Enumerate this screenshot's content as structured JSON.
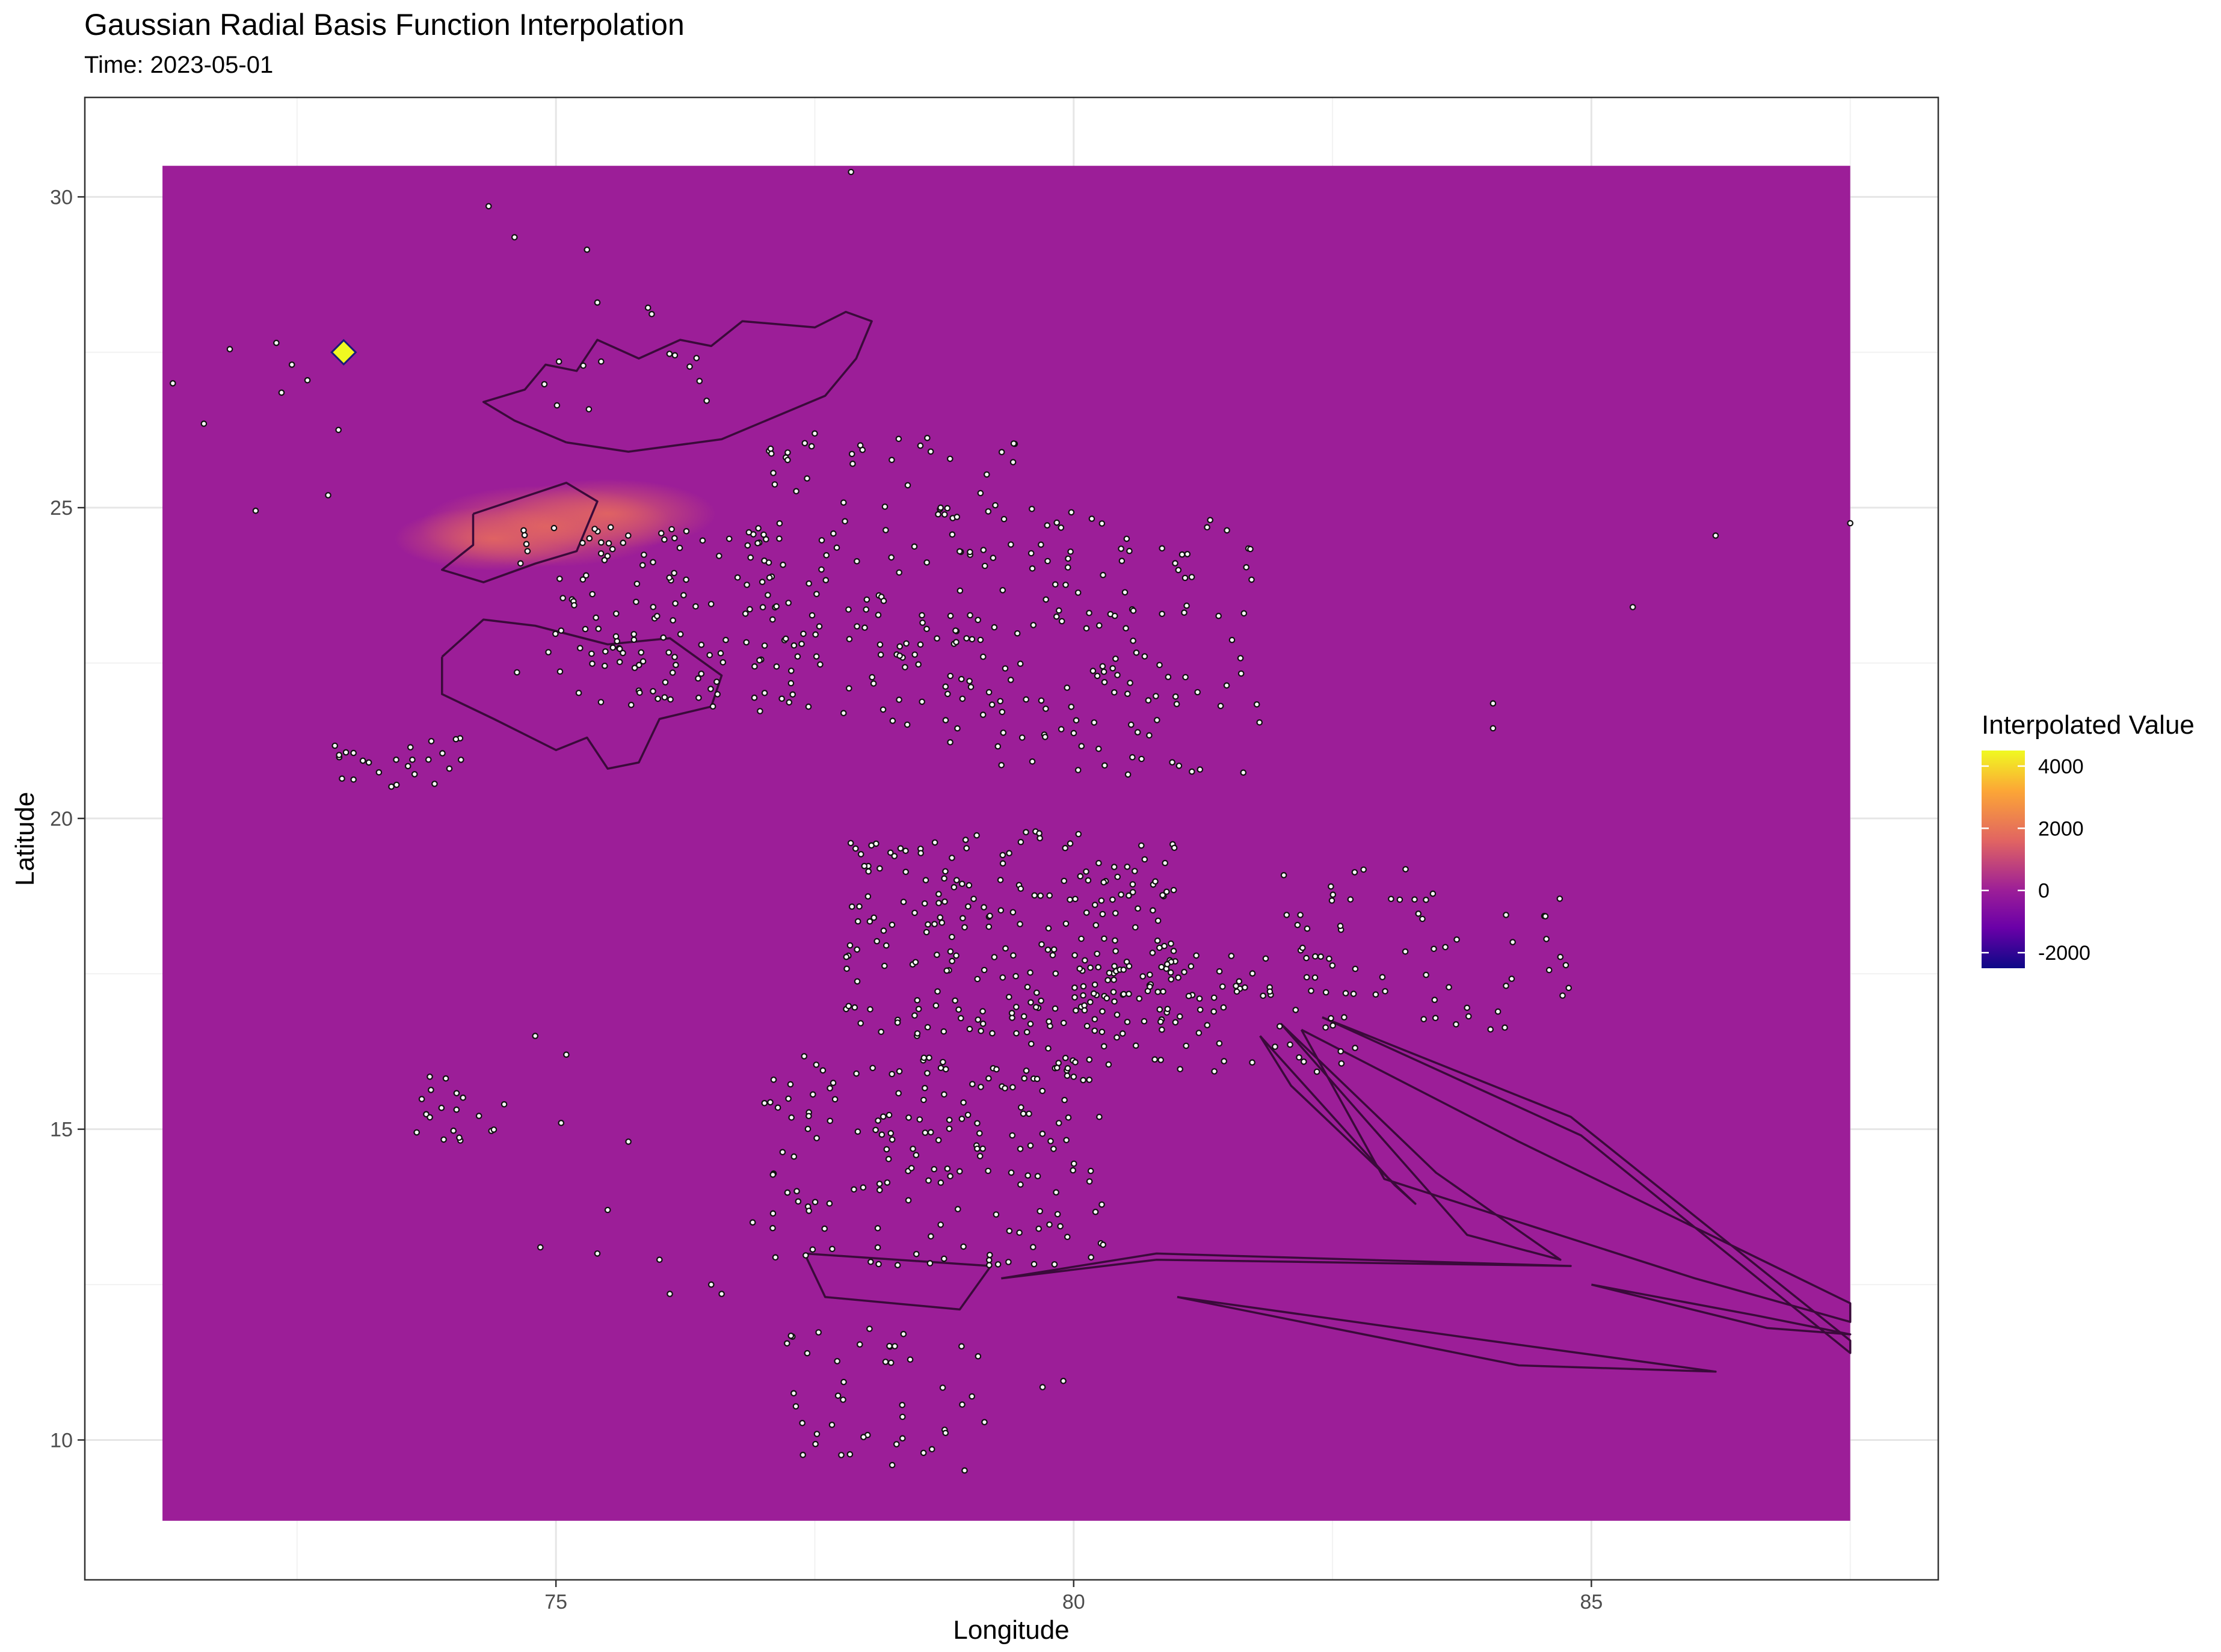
{
  "chart_data": {
    "type": "heatmap",
    "title": "Gaussian Radial Basis Function Interpolation",
    "subtitle": "Time: 2023-05-01",
    "xlabel": "Longitude",
    "ylabel": "Latitude",
    "xlim": [
      70.45,
      88.35
    ],
    "ylim": [
      7.75,
      31.6
    ],
    "x_ticks": [
      75,
      80,
      85
    ],
    "y_ticks": [
      10,
      15,
      20,
      25,
      30
    ],
    "grid": true,
    "raster_extent": {
      "lon": [
        71.2,
        87.5
      ],
      "lat": [
        8.7,
        30.5
      ]
    },
    "base_value": 0,
    "legend": {
      "title": "Interpolated Value",
      "placement": "right",
      "range": [
        -2500,
        4500
      ],
      "ticks": [
        4000,
        2000,
        0,
        -2000
      ],
      "tick_labels": [
        "4000",
        "2000",
        "0",
        "-2000"
      ]
    },
    "colors": {
      "low": "#0d0887",
      "mid_low": "#6a00a8",
      "mid": "#9c1e98",
      "mid_high": "#e16462",
      "high": "#fca636",
      "max": "#f0f921",
      "boundary": "#3a0a3a",
      "marker": "#f0f921"
    },
    "hotspots": [
      {
        "lon": 74.9,
        "lat": 24.7,
        "value": 1800
      },
      {
        "lon": 75.5,
        "lat": 24.9,
        "value": 1200
      },
      {
        "lon": 74.4,
        "lat": 24.5,
        "value": 900
      }
    ],
    "highlight_point": {
      "lon": 72.95,
      "lat": 27.5,
      "symbol": "diamond"
    },
    "station_clusters": [
      {
        "lon": [
          75.0,
          77.3
        ],
        "lat": [
          21.8,
          24.8
        ],
        "count": 90
      },
      {
        "lon": [
          76.8,
          79.5
        ],
        "lat": [
          21.5,
          26.2
        ],
        "count": 140
      },
      {
        "lon": [
          78.8,
          81.8
        ],
        "lat": [
          20.7,
          25.0
        ],
        "count": 140
      },
      {
        "lon": [
          77.8,
          81.0
        ],
        "lat": [
          16.5,
          19.8
        ],
        "count": 230
      },
      {
        "lon": [
          79.5,
          82.8
        ],
        "lat": [
          15.8,
          18.0
        ],
        "count": 110
      },
      {
        "lon": [
          82.0,
          84.8
        ],
        "lat": [
          16.6,
          19.2
        ],
        "count": 60
      },
      {
        "lon": [
          77.0,
          80.3
        ],
        "lat": [
          12.8,
          16.2
        ],
        "count": 170
      },
      {
        "lon": [
          77.2,
          79.2
        ],
        "lat": [
          9.5,
          11.8
        ],
        "count": 45
      },
      {
        "lon": [
          72.8,
          74.2
        ],
        "lat": [
          20.5,
          21.3
        ],
        "count": 25
      },
      {
        "lon": [
          73.6,
          74.5
        ],
        "lat": [
          14.8,
          15.9
        ],
        "count": 18
      },
      {
        "lon": [
          74.6,
          76.3
        ],
        "lat": [
          22.3,
          24.7
        ],
        "count": 40
      },
      {
        "lon": [
          74.8,
          76.5
        ],
        "lat": [
          26.5,
          28.3
        ],
        "count": 14
      }
    ],
    "isolated_stations": [
      [
        77.85,
        30.4
      ],
      [
        74.35,
        29.85
      ],
      [
        74.6,
        29.35
      ],
      [
        75.3,
        29.15
      ],
      [
        75.4,
        28.3
      ],
      [
        71.3,
        27.0
      ],
      [
        71.6,
        26.35
      ],
      [
        71.85,
        27.55
      ],
      [
        72.3,
        27.65
      ],
      [
        72.45,
        27.3
      ],
      [
        72.6,
        27.05
      ],
      [
        72.35,
        26.85
      ],
      [
        72.9,
        26.25
      ],
      [
        72.1,
        24.95
      ],
      [
        72.8,
        25.2
      ],
      [
        86.2,
        24.55
      ],
      [
        85.4,
        23.4
      ],
      [
        87.5,
        24.75
      ],
      [
        84.05,
        21.85
      ],
      [
        84.05,
        21.45
      ],
      [
        74.8,
        16.5
      ],
      [
        75.1,
        16.2
      ],
      [
        75.05,
        15.1
      ],
      [
        74.85,
        13.1
      ],
      [
        75.5,
        13.7
      ],
      [
        75.4,
        13.0
      ],
      [
        76.0,
        12.9
      ],
      [
        76.1,
        12.35
      ],
      [
        74.5,
        15.4
      ],
      [
        75.7,
        14.8
      ],
      [
        76.5,
        12.5
      ],
      [
        76.6,
        12.35
      ],
      [
        76.9,
        13.5
      ],
      [
        79.7,
        10.85
      ],
      [
        79.9,
        10.95
      ]
    ],
    "boundary_polygons": [
      [
        [
          75.1,
          26.05
        ],
        [
          75.7,
          25.9
        ],
        [
          76.6,
          26.1
        ],
        [
          77.6,
          26.8
        ],
        [
          77.9,
          27.4
        ],
        [
          78.05,
          28.0
        ],
        [
          77.8,
          28.15
        ],
        [
          77.5,
          27.9
        ],
        [
          76.8,
          28.0
        ],
        [
          76.5,
          27.6
        ],
        [
          76.2,
          27.7
        ],
        [
          75.8,
          27.4
        ],
        [
          75.4,
          27.7
        ],
        [
          75.2,
          27.2
        ],
        [
          74.9,
          27.3
        ],
        [
          74.7,
          26.9
        ],
        [
          74.3,
          26.7
        ],
        [
          74.6,
          26.4
        ],
        [
          75.1,
          26.05
        ]
      ],
      [
        [
          74.2,
          24.9
        ],
        [
          75.1,
          25.4
        ],
        [
          75.4,
          25.1
        ],
        [
          75.2,
          24.3
        ],
        [
          74.8,
          24.1
        ],
        [
          74.3,
          23.8
        ],
        [
          73.9,
          24.0
        ],
        [
          74.2,
          24.4
        ],
        [
          74.2,
          24.9
        ]
      ],
      [
        [
          73.9,
          22.6
        ],
        [
          74.3,
          23.2
        ],
        [
          74.8,
          23.1
        ],
        [
          75.5,
          22.8
        ],
        [
          76.1,
          22.9
        ],
        [
          76.6,
          22.3
        ],
        [
          76.5,
          21.8
        ],
        [
          76.0,
          21.6
        ],
        [
          75.8,
          20.9
        ],
        [
          75.5,
          20.8
        ],
        [
          75.3,
          21.3
        ],
        [
          75.0,
          21.1
        ],
        [
          74.4,
          21.6
        ],
        [
          73.9,
          22.0
        ],
        [
          73.9,
          22.6
        ]
      ],
      [
        [
          77.4,
          13.0
        ],
        [
          79.2,
          12.8
        ],
        [
          78.9,
          12.1
        ],
        [
          77.6,
          12.3
        ],
        [
          77.4,
          13.0
        ]
      ],
      [
        [
          79.3,
          12.6
        ],
        [
          80.8,
          13.0
        ],
        [
          84.8,
          12.8
        ],
        [
          80.8,
          12.9
        ],
        [
          79.3,
          12.6
        ]
      ],
      [
        [
          82.2,
          16.6
        ],
        [
          84.3,
          14.8
        ],
        [
          87.5,
          12.2
        ],
        [
          87.5,
          11.9
        ],
        [
          86.0,
          12.6
        ],
        [
          83.0,
          14.2
        ],
        [
          82.2,
          16.6
        ]
      ],
      [
        [
          82.0,
          16.7
        ],
        [
          83.5,
          14.3
        ],
        [
          84.7,
          12.9
        ],
        [
          83.8,
          13.3
        ],
        [
          82.0,
          16.7
        ]
      ],
      [
        [
          82.4,
          16.8
        ],
        [
          84.8,
          15.2
        ],
        [
          87.5,
          11.6
        ],
        [
          87.5,
          11.4
        ],
        [
          84.9,
          14.9
        ],
        [
          82.4,
          16.8
        ]
      ],
      [
        [
          81.8,
          16.5
        ],
        [
          83.1,
          14.1
        ],
        [
          83.3,
          13.8
        ],
        [
          82.1,
          15.7
        ],
        [
          81.8,
          16.5
        ]
      ],
      [
        [
          85.0,
          12.5
        ],
        [
          86.6,
          12.0
        ],
        [
          87.5,
          11.7
        ],
        [
          86.7,
          11.8
        ],
        [
          85.0,
          12.5
        ]
      ],
      [
        [
          81.0,
          12.3
        ],
        [
          84.3,
          11.2
        ],
        [
          86.2,
          11.1
        ],
        [
          84.0,
          11.6
        ],
        [
          81.0,
          12.3
        ]
      ]
    ]
  }
}
